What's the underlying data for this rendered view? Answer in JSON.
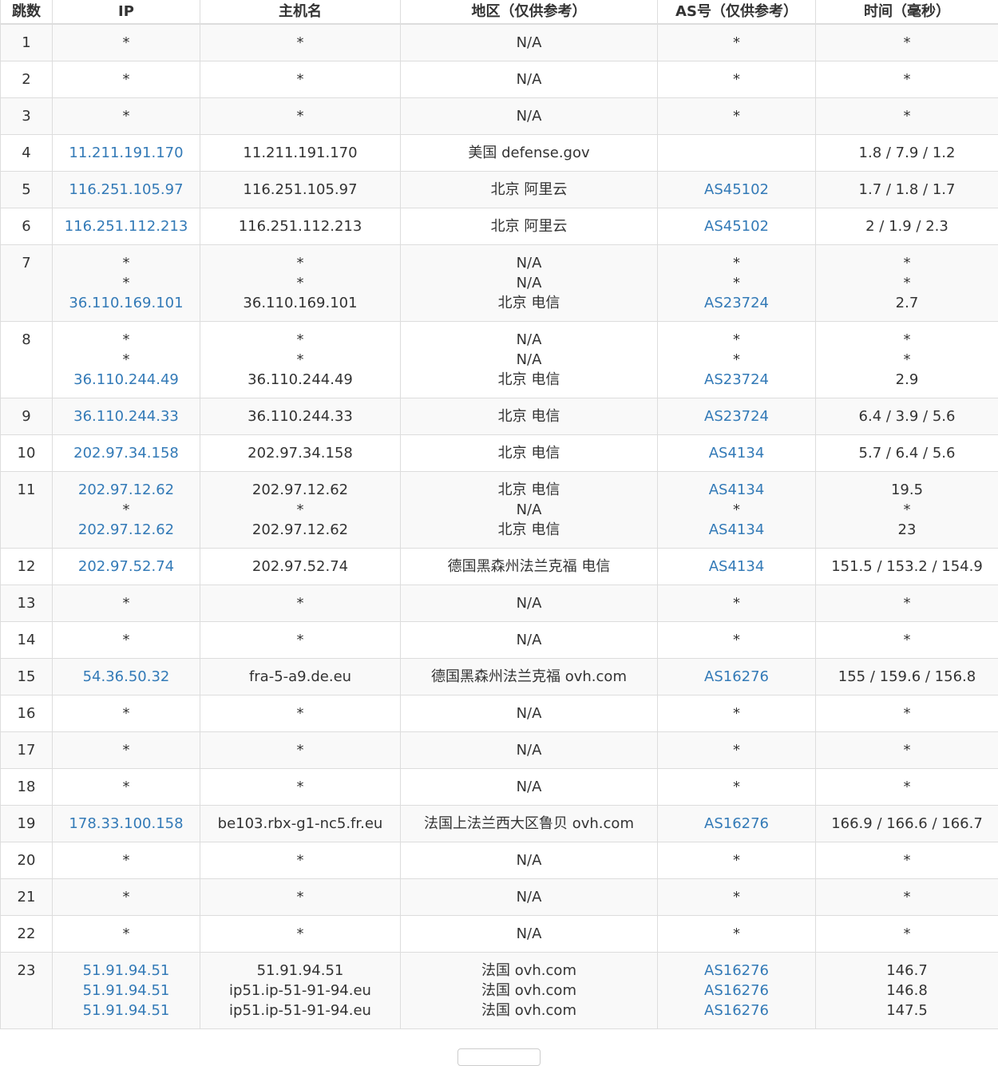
{
  "headers": [
    "跳数",
    "IP",
    "主机名",
    "地区（仅供参考）",
    "AS号（仅供参考）",
    "时间（毫秒）"
  ],
  "colors": {
    "link": "#337ab7",
    "text": "#333333",
    "row_alt": "#f9f9f9",
    "border": "#dddddd"
  },
  "rows": [
    {
      "hop": "1",
      "ip": [
        "*"
      ],
      "host": [
        "*"
      ],
      "region": [
        "N/A"
      ],
      "as": [
        "*"
      ],
      "time": [
        "*"
      ]
    },
    {
      "hop": "2",
      "ip": [
        "*"
      ],
      "host": [
        "*"
      ],
      "region": [
        "N/A"
      ],
      "as": [
        "*"
      ],
      "time": [
        "*"
      ]
    },
    {
      "hop": "3",
      "ip": [
        "*"
      ],
      "host": [
        "*"
      ],
      "region": [
        "N/A"
      ],
      "as": [
        "*"
      ],
      "time": [
        "*"
      ]
    },
    {
      "hop": "4",
      "ip": [
        "11.211.191.170"
      ],
      "host": [
        "11.211.191.170"
      ],
      "region": [
        "美国 defense.gov"
      ],
      "as": [
        ""
      ],
      "time": [
        "1.8 / 7.9 / 1.2"
      ]
    },
    {
      "hop": "5",
      "ip": [
        "116.251.105.97"
      ],
      "host": [
        "116.251.105.97"
      ],
      "region": [
        "北京 阿里云"
      ],
      "as": [
        "AS45102"
      ],
      "time": [
        "1.7 / 1.8 / 1.7"
      ]
    },
    {
      "hop": "6",
      "ip": [
        "116.251.112.213"
      ],
      "host": [
        "116.251.112.213"
      ],
      "region": [
        "北京 阿里云"
      ],
      "as": [
        "AS45102"
      ],
      "time": [
        "2 / 1.9 / 2.3"
      ]
    },
    {
      "hop": "7",
      "ip": [
        "*",
        "*",
        "36.110.169.101"
      ],
      "host": [
        "*",
        "*",
        "36.110.169.101"
      ],
      "region": [
        "N/A",
        "N/A",
        "北京 电信"
      ],
      "as": [
        "*",
        "*",
        "AS23724"
      ],
      "time": [
        "*",
        "*",
        "2.7"
      ]
    },
    {
      "hop": "8",
      "ip": [
        "*",
        "*",
        "36.110.244.49"
      ],
      "host": [
        "*",
        "*",
        "36.110.244.49"
      ],
      "region": [
        "N/A",
        "N/A",
        "北京 电信"
      ],
      "as": [
        "*",
        "*",
        "AS23724"
      ],
      "time": [
        "*",
        "*",
        "2.9"
      ]
    },
    {
      "hop": "9",
      "ip": [
        "36.110.244.33"
      ],
      "host": [
        "36.110.244.33"
      ],
      "region": [
        "北京 电信"
      ],
      "as": [
        "AS23724"
      ],
      "time": [
        "6.4 / 3.9 / 5.6"
      ]
    },
    {
      "hop": "10",
      "ip": [
        "202.97.34.158"
      ],
      "host": [
        "202.97.34.158"
      ],
      "region": [
        "北京 电信"
      ],
      "as": [
        "AS4134"
      ],
      "time": [
        "5.7 / 6.4 / 5.6"
      ]
    },
    {
      "hop": "11",
      "ip": [
        "202.97.12.62",
        "*",
        "202.97.12.62"
      ],
      "host": [
        "202.97.12.62",
        "*",
        "202.97.12.62"
      ],
      "region": [
        "北京 电信",
        "N/A",
        "北京 电信"
      ],
      "as": [
        "AS4134",
        "*",
        "AS4134"
      ],
      "time": [
        "19.5",
        "*",
        "23"
      ]
    },
    {
      "hop": "12",
      "ip": [
        "202.97.52.74"
      ],
      "host": [
        "202.97.52.74"
      ],
      "region": [
        "德国黑森州法兰克福 电信"
      ],
      "as": [
        "AS4134"
      ],
      "time": [
        "151.5 / 153.2 / 154.9"
      ]
    },
    {
      "hop": "13",
      "ip": [
        "*"
      ],
      "host": [
        "*"
      ],
      "region": [
        "N/A"
      ],
      "as": [
        "*"
      ],
      "time": [
        "*"
      ]
    },
    {
      "hop": "14",
      "ip": [
        "*"
      ],
      "host": [
        "*"
      ],
      "region": [
        "N/A"
      ],
      "as": [
        "*"
      ],
      "time": [
        "*"
      ]
    },
    {
      "hop": "15",
      "ip": [
        "54.36.50.32"
      ],
      "host": [
        "fra-5-a9.de.eu"
      ],
      "region": [
        "德国黑森州法兰克福 ovh.com"
      ],
      "as": [
        "AS16276"
      ],
      "time": [
        "155 / 159.6 / 156.8"
      ]
    },
    {
      "hop": "16",
      "ip": [
        "*"
      ],
      "host": [
        "*"
      ],
      "region": [
        "N/A"
      ],
      "as": [
        "*"
      ],
      "time": [
        "*"
      ]
    },
    {
      "hop": "17",
      "ip": [
        "*"
      ],
      "host": [
        "*"
      ],
      "region": [
        "N/A"
      ],
      "as": [
        "*"
      ],
      "time": [
        "*"
      ]
    },
    {
      "hop": "18",
      "ip": [
        "*"
      ],
      "host": [
        "*"
      ],
      "region": [
        "N/A"
      ],
      "as": [
        "*"
      ],
      "time": [
        "*"
      ]
    },
    {
      "hop": "19",
      "ip": [
        "178.33.100.158"
      ],
      "host": [
        "be103.rbx-g1-nc5.fr.eu"
      ],
      "region": [
        "法国上法兰西大区鲁贝 ovh.com"
      ],
      "as": [
        "AS16276"
      ],
      "time": [
        "166.9 / 166.6 / 166.7"
      ]
    },
    {
      "hop": "20",
      "ip": [
        "*"
      ],
      "host": [
        "*"
      ],
      "region": [
        "N/A"
      ],
      "as": [
        "*"
      ],
      "time": [
        "*"
      ]
    },
    {
      "hop": "21",
      "ip": [
        "*"
      ],
      "host": [
        "*"
      ],
      "region": [
        "N/A"
      ],
      "as": [
        "*"
      ],
      "time": [
        "*"
      ]
    },
    {
      "hop": "22",
      "ip": [
        "*"
      ],
      "host": [
        "*"
      ],
      "region": [
        "N/A"
      ],
      "as": [
        "*"
      ],
      "time": [
        "*"
      ]
    },
    {
      "hop": "23",
      "ip": [
        "51.91.94.51",
        "51.91.94.51",
        "51.91.94.51"
      ],
      "host": [
        "51.91.94.51",
        "ip51.ip-51-91-94.eu",
        "ip51.ip-51-91-94.eu"
      ],
      "region": [
        "法国 ovh.com",
        "法国 ovh.com",
        "法国 ovh.com"
      ],
      "as": [
        "AS16276",
        "AS16276",
        "AS16276"
      ],
      "time": [
        "146.7",
        "146.8",
        "147.5"
      ]
    }
  ]
}
